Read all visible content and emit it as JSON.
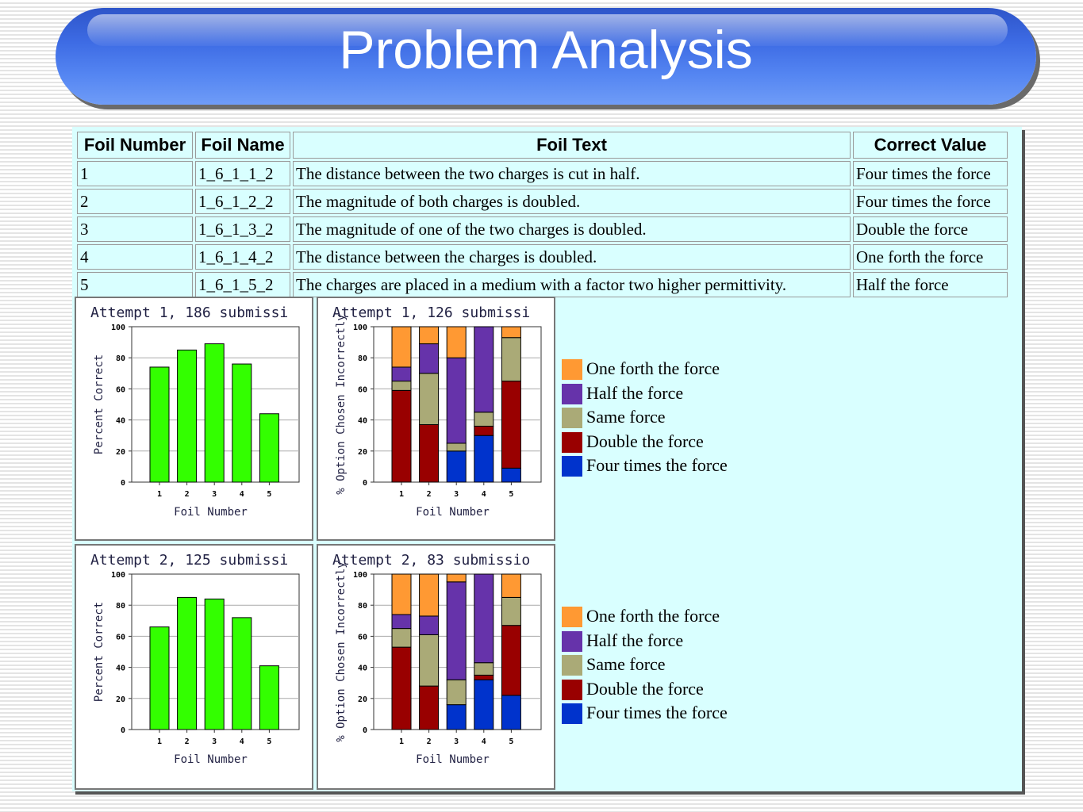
{
  "title": "Problem Analysis",
  "table": {
    "headers": [
      "Foil Number",
      "Foil Name",
      "Foil Text",
      "Correct Value"
    ],
    "rows": [
      [
        "1",
        "1_6_1_1_2",
        "The distance between the two charges is cut in half.",
        "Four times the force"
      ],
      [
        "2",
        "1_6_1_2_2",
        "The magnitude of both charges is doubled.",
        "Four times the force"
      ],
      [
        "3",
        "1_6_1_3_2",
        "The magnitude of one of the two charges is doubled.",
        "Double the force"
      ],
      [
        "4",
        "1_6_1_4_2",
        "The distance between the charges is doubled.",
        "One forth the force"
      ],
      [
        "5",
        "1_6_1_5_2",
        "The charges are placed in a medium with a factor two higher permittivity.",
        "Half the force"
      ]
    ]
  },
  "colors": {
    "correct_bar": "#33ff00",
    "one_forth": "#ff9933",
    "half": "#6633aa",
    "same": "#aaaa77",
    "double": "#990000",
    "four_times": "#0033cc"
  },
  "legend": {
    "items": [
      {
        "label": "One forth the force",
        "color": "#ff9933"
      },
      {
        "label": "Half the force",
        "color": "#6633aa"
      },
      {
        "label": "Same force",
        "color": "#aaaa77"
      },
      {
        "label": "Double the force",
        "color": "#990000"
      },
      {
        "label": "Four times the force",
        "color": "#0033cc"
      }
    ]
  },
  "chart_data": [
    {
      "type": "bar",
      "title": "Attempt 1, 186 submissi",
      "xlabel": "Foil Number",
      "ylabel": "Percent Correct",
      "categories": [
        "1",
        "2",
        "3",
        "4",
        "5"
      ],
      "values": [
        74,
        85,
        89,
        76,
        44
      ],
      "ylim": [
        0,
        100
      ],
      "yticks": [
        0,
        20,
        40,
        60,
        80,
        100
      ]
    },
    {
      "type": "bar",
      "stacked": true,
      "title": "Attempt 1, 126 submissi",
      "xlabel": "Foil Number",
      "ylabel": "% Option Chosen Incorrectly",
      "categories": [
        "1",
        "2",
        "3",
        "4",
        "5"
      ],
      "ylim": [
        0,
        100
      ],
      "yticks": [
        0,
        20,
        40,
        60,
        80,
        100
      ],
      "series": [
        {
          "name": "Four times the force",
          "values": [
            0,
            0,
            20,
            30,
            9
          ]
        },
        {
          "name": "Double the force",
          "values": [
            59,
            37,
            0,
            6,
            56
          ]
        },
        {
          "name": "Same force",
          "values": [
            6,
            33,
            5,
            9,
            28
          ]
        },
        {
          "name": "Half the force",
          "values": [
            9,
            19,
            55,
            55,
            0
          ]
        },
        {
          "name": "One forth the force",
          "values": [
            26,
            11,
            20,
            0,
            7
          ]
        }
      ]
    },
    {
      "type": "bar",
      "title": "Attempt 2, 125 submissi",
      "xlabel": "Foil Number",
      "ylabel": "Percent Correct",
      "categories": [
        "1",
        "2",
        "3",
        "4",
        "5"
      ],
      "values": [
        66,
        85,
        84,
        72,
        41
      ],
      "ylim": [
        0,
        100
      ],
      "yticks": [
        0,
        20,
        40,
        60,
        80,
        100
      ]
    },
    {
      "type": "bar",
      "stacked": true,
      "title": "Attempt 2, 83 submissio",
      "xlabel": "Foil Number",
      "ylabel": "% Option Chosen Incorrectly",
      "categories": [
        "1",
        "2",
        "3",
        "4",
        "5"
      ],
      "ylim": [
        0,
        100
      ],
      "yticks": [
        0,
        20,
        40,
        60,
        80,
        100
      ],
      "series": [
        {
          "name": "Four times the force",
          "values": [
            0,
            0,
            16,
            32,
            22
          ]
        },
        {
          "name": "Double the force",
          "values": [
            53,
            28,
            0,
            3,
            45
          ]
        },
        {
          "name": "Same force",
          "values": [
            12,
            33,
            16,
            8,
            18
          ]
        },
        {
          "name": "Half the force",
          "values": [
            9,
            12,
            63,
            57,
            0
          ]
        },
        {
          "name": "One forth the force",
          "values": [
            26,
            27,
            5,
            0,
            15
          ]
        }
      ]
    }
  ]
}
